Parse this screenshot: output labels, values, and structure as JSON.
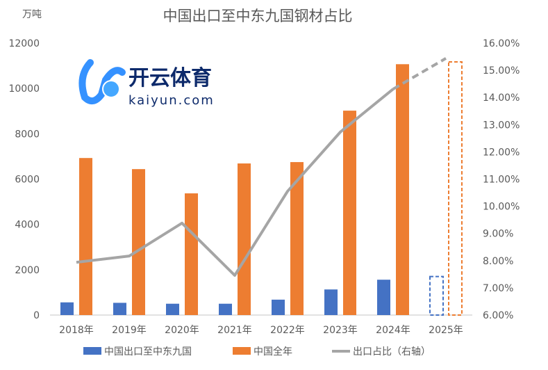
{
  "chart_data": {
    "type": "bar",
    "title": "中国出口至中东九国钢材占比",
    "ylabel": "万吨",
    "ylim": [
      0,
      12000
    ],
    "y_ticks": [
      "0",
      "2000",
      "4000",
      "6000",
      "8000",
      "10000",
      "12000"
    ],
    "y2lim": [
      6,
      16
    ],
    "y2_ticks": [
      "6.00%",
      "7.00%",
      "8.00%",
      "9.00%",
      "10.00%",
      "11.00%",
      "12.00%",
      "13.00%",
      "14.00%",
      "15.00%",
      "16.00%"
    ],
    "categories": [
      "2018年",
      "2019年",
      "2020年",
      "2021年",
      "2022年",
      "2023年",
      "2024年",
      "2025年"
    ],
    "series": [
      {
        "name": "中国出口至中东九国",
        "type": "bar",
        "axis": "left",
        "color": "#4472C4",
        "values": [
          560,
          540,
          500,
          500,
          680,
          1130,
          1560,
          1700
        ],
        "projected_from_index": 7
      },
      {
        "name": "中国全年",
        "type": "bar",
        "axis": "left",
        "color": "#ED7D31",
        "values": [
          6930,
          6440,
          5370,
          6690,
          6750,
          9020,
          11070,
          11170
        ],
        "projected_from_index": 7
      },
      {
        "name": "出口占比（右轴）",
        "type": "line",
        "axis": "right",
        "color": "#A5A5A5",
        "values": [
          7.94,
          8.17,
          9.38,
          7.46,
          10.55,
          12.73,
          14.31,
          15.44
        ],
        "projected_from_index": 7
      }
    ],
    "legend": "bottom",
    "grid": false
  },
  "watermark": {
    "text": "开云体育",
    "subtext": "kaiyun.com"
  }
}
